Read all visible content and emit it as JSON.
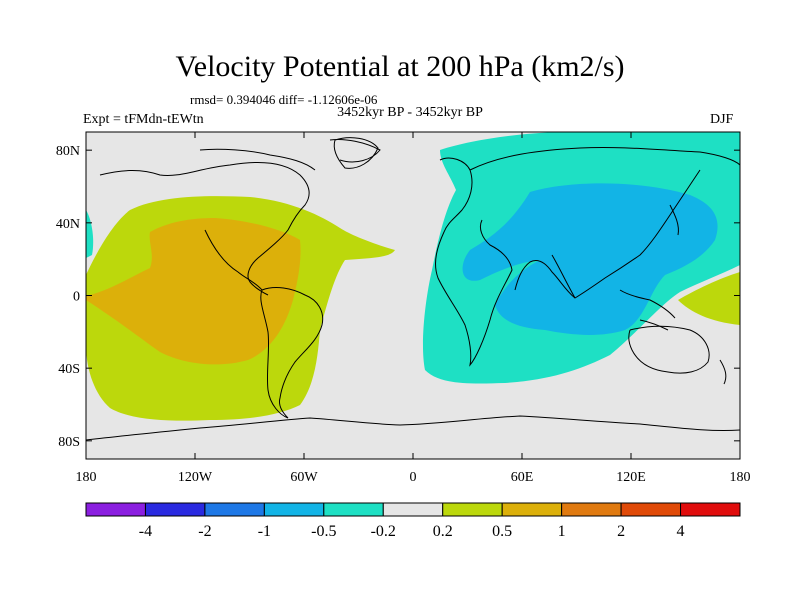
{
  "title": "Velocity Potential at 200 hPa (km2/s)",
  "stats": "rmsd= 0.394046 diff= -1.12606e-06",
  "subtitle": "3452kyr BP - 3452kyr BP",
  "left_label": "Expt = tFMdn-tEWtn",
  "right_label": "DJF",
  "map": {
    "projection": "cylindrical equidistant",
    "lon_range": [
      -180,
      180
    ],
    "lat_range": [
      -90,
      90
    ],
    "lat_ticks": [
      {
        "value": 80,
        "label": "80N"
      },
      {
        "value": 40,
        "label": "40N"
      },
      {
        "value": 0,
        "label": "0"
      },
      {
        "value": -40,
        "label": "40S"
      },
      {
        "value": -80,
        "label": "80S"
      }
    ],
    "lon_ticks": [
      {
        "value": -180,
        "label": "180"
      },
      {
        "value": -120,
        "label": "120W"
      },
      {
        "value": -60,
        "label": "60W"
      },
      {
        "value": 0,
        "label": "0"
      },
      {
        "value": 60,
        "label": "60E"
      },
      {
        "value": 120,
        "label": "120E"
      },
      {
        "value": 180,
        "label": "180"
      }
    ]
  },
  "colorbar": {
    "colors": [
      "#8b1fe0",
      "#2a2ae0",
      "#1e78e6",
      "#12b4e6",
      "#1ee0c4",
      "#e6e6e6",
      "#bcd80c",
      "#dcb00a",
      "#e07a10",
      "#e04a08",
      "#e00c0c"
    ],
    "labels": [
      "-4",
      "-2",
      "-1",
      "-0.5",
      "-0.2",
      "0.2",
      "0.5",
      "1",
      "2",
      "4"
    ]
  },
  "fields": {
    "background": "#e6e6e6",
    "pos_weak": "#bcd80c",
    "pos_mid": "#dcb00a",
    "neg_weak": "#1ee0c4",
    "neg_mid": "#12b4e6"
  }
}
